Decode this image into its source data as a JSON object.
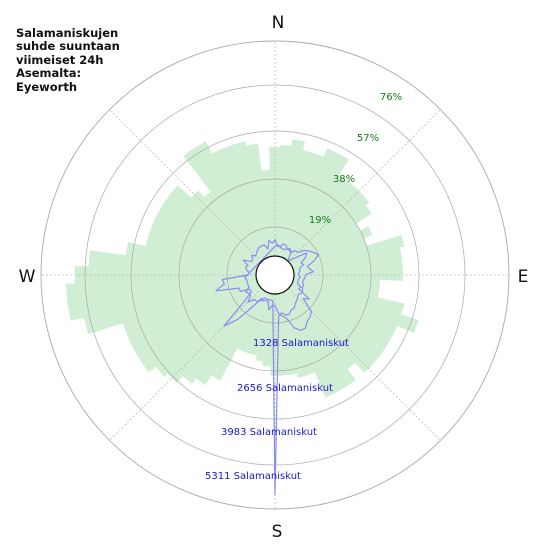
{
  "title_lines": [
    "Salamaniskujen",
    "suhde suuntaan",
    "viimeiset 24h",
    "Asemalta:",
    "Eyeworth"
  ],
  "colors": {
    "background": "#ffffff",
    "ring": "#a9a9a9",
    "spoke": "#bdbdbd",
    "green_fill": "#cfeed3",
    "line": "#8a8df2",
    "pct_label": "#1a7a1a",
    "count_label": "#1a1acc",
    "text": "#111111"
  },
  "chart_data": {
    "type": "polar",
    "title": "Salamaniskujen suhde suuntaan viimeiset 24h Asemalta: Eyeworth",
    "compass_labels": {
      "north": "N",
      "east": "E",
      "south": "S",
      "west": "W"
    },
    "percent_ring_labels": [
      "19%",
      "38%",
      "57%",
      "76%"
    ],
    "count_ring_labels": [
      "1328 Salamaniskut",
      "2656 Salamaniskut",
      "3983 Salamaniskut",
      "5311 Salamaniskut"
    ],
    "grid": true,
    "direction_step_deg": 5,
    "percent_rmax": 95,
    "count_rmax": 6639,
    "series": [
      {
        "style": "bars",
        "unit": "percent",
        "values": [
          48,
          49,
          52,
          48,
          46,
          52,
          52,
          42,
          18,
          18,
          17,
          15,
          13,
          38,
          34,
          34,
          31,
          31,
          22,
          13,
          12,
          15,
          15,
          15,
          17,
          18,
          25,
          25,
          25,
          25,
          25,
          25,
          38,
          38,
          36,
          36,
          36,
          32,
          30,
          28,
          28,
          28,
          44,
          49,
          51,
          56,
          58,
          62,
          62,
          62,
          62,
          78,
          84,
          84,
          80,
          74,
          58,
          50,
          50,
          50,
          50,
          50,
          50,
          42,
          38,
          58,
          58,
          52,
          52,
          52,
          50,
          38,
          38,
          38,
          38,
          18,
          48,
          48,
          48,
          44,
          44,
          44,
          44,
          42,
          34,
          26,
          26,
          50,
          48,
          48,
          48,
          38,
          38,
          50,
          58,
          50,
          50,
          50,
          50,
          50,
          44,
          50,
          50,
          50,
          34,
          30,
          30,
          30,
          26,
          24,
          24,
          26,
          26,
          28,
          36,
          36,
          52,
          52,
          54,
          44,
          44,
          54,
          52,
          45,
          45,
          45
        ]
      },
      {
        "style": "line",
        "unit": "count",
        "values": [
          300,
          350,
          300,
          250,
          250,
          300,
          300,
          300,
          50,
          50,
          250,
          600,
          500,
          300,
          350,
          200,
          200,
          150,
          150,
          200,
          150,
          150,
          150,
          300,
          250,
          700,
          550,
          1000,
          1100,
          1150,
          1300,
          1300,
          1150,
          800,
          700,
          600,
          350,
          350,
          500,
          250,
          250,
          300,
          250,
          600,
          1200,
          1650,
          600,
          300,
          300,
          600,
          600,
          1300,
          1000,
          1050,
          250,
          200,
          300,
          350,
          300,
          500,
          250,
          250,
          350,
          250,
          300,
          350,
          400,
          400,
          400,
          250,
          500,
          400,
          500,
          300,
          300,
          400,
          400,
          300,
          350,
          250,
          400,
          400,
          600,
          700,
          800,
          900,
          700,
          450,
          500,
          600,
          350,
          350,
          300,
          300,
          350,
          350,
          400,
          400,
          350,
          400,
          450,
          500,
          600,
          600,
          700,
          700,
          600,
          700,
          6200,
          200,
          200,
          200,
          200,
          200,
          350,
          400,
          400,
          600,
          400,
          400,
          450,
          300,
          300,
          300,
          300,
          350
        ]
      }
    ]
  }
}
